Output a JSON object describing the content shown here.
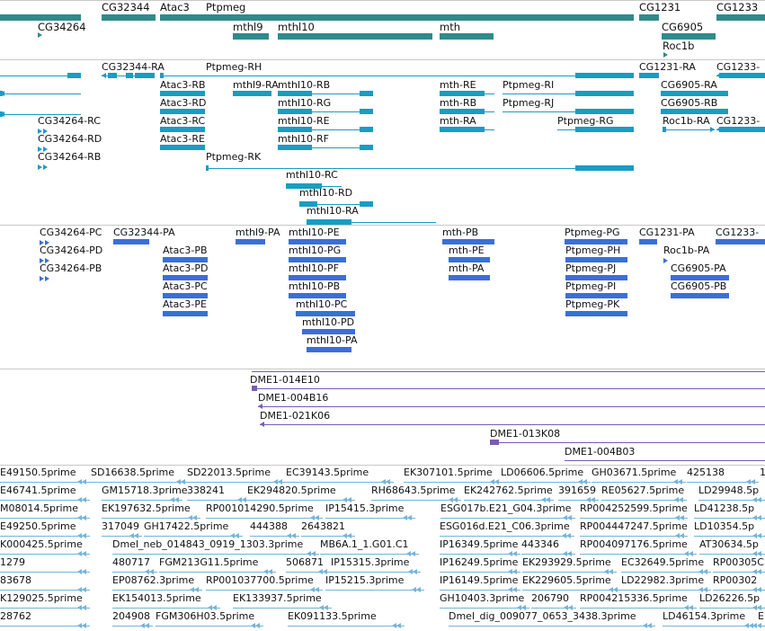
{
  "colors": {
    "gene": "#2e8b8b",
    "transcript": "#1a9cc4",
    "protein": "#3a6fd8",
    "clone": "#7a5bb5",
    "est": "#74b4d8",
    "separator": "#c8c8c8"
  },
  "tracks": {
    "genes": [
      {
        "name": "CG34264",
        "dir": "left"
      },
      {
        "name": "CG32344",
        "dir": "left"
      },
      {
        "name": "Atac3",
        "dir": "left"
      },
      {
        "name": "Ptpmeg",
        "dir": "right"
      },
      {
        "name": "mthl9",
        "dir": "left"
      },
      {
        "name": "mthl10",
        "dir": "left"
      },
      {
        "name": "mth",
        "dir": "left"
      },
      {
        "name": "CG1231",
        "dir": "right"
      },
      {
        "name": "CG6905",
        "dir": "left"
      },
      {
        "name": "Roc1b",
        "dir": "right"
      },
      {
        "name": "CG1233",
        "dir": "right"
      }
    ],
    "transcripts": [
      "CG32344-RA",
      "Ptpmeg-RH",
      "CG1231-RA",
      "CG1233-",
      "Atac3-RB",
      "mthl9-RA",
      "mthl10-RB",
      "mth-RE",
      "Ptpmeg-RI",
      "CG6905-RA",
      "Atac3-RD",
      "mthl10-RG",
      "mth-RB",
      "Ptpmeg-RJ",
      "CG6905-RB",
      "CG34264-RC",
      "Atac3-RC",
      "mthl10-RE",
      "mth-RA",
      "Ptpmeg-RG",
      "Roc1b-RA",
      "CG1233-",
      "CG34264-RD",
      "Atac3-RE",
      "mthl10-RF",
      "CG34264-RB",
      "Ptpmeg-RK",
      "mthl10-RC",
      "mthl10-RD",
      "mthl10-RA"
    ],
    "proteins": [
      "CG34264-PC",
      "CG32344-PA",
      "mthl9-PA",
      "mthl10-PE",
      "mth-PB",
      "Ptpmeg-PG",
      "CG1231-PA",
      "CG1233-",
      "CG34264-PD",
      "Atac3-PB",
      "mthl10-PG",
      "mth-PE",
      "Ptpmeg-PH",
      "Roc1b-PA",
      "CG34264-PB",
      "Atac3-PD",
      "mthl10-PF",
      "mth-PA",
      "Ptpmeg-PJ",
      "CG6905-PA",
      "Atac3-PC",
      "mthl10-PB",
      "Ptpmeg-PI",
      "CG6905-PB",
      "Atac3-PE",
      "mthl10-PC",
      "Ptpmeg-PK",
      "mthl10-PD",
      "mthl10-PA"
    ],
    "clones": [
      "DME1-014E10",
      "DME1-004B16",
      "DME1-021K06",
      "DME1-013K08",
      "DME1-004B03"
    ],
    "ests": [
      "E49150.5prime",
      "SD16638.5prime",
      "SD22013.5prime",
      "EC39143.5prime",
      "EK307101.5prime",
      "LD06606.5prime",
      "GH03671.5prime",
      "425138",
      "1",
      "E46741.5prime",
      "GM15718.3prime",
      "338241",
      "EK294820.5prime",
      "RH68643.5prime",
      "EK242762.5prime",
      "391659",
      "RE05627.5prime",
      "LD29948.5p",
      "M08014.5prime",
      "EK197632.5prime",
      "RP001014290.5prime",
      "IP15415.3prime",
      "ESG017b.E21_G04.3prime",
      "RP004252599.5prime",
      "LD41238.5p",
      "E49250.5prime",
      "317049",
      "GH17422.5prime",
      "444388",
      "2643821",
      "ESG016d.E21_C06.3prime",
      "RP004447247.5prime",
      "LD10354.5p",
      "K000425.5prime",
      "Dmel_neb_014843_0919_1303.3prime",
      "MB6A.1_1.G01.C1",
      "IP16349.5prime",
      "443346",
      "RP004097176.5prime",
      "AT30634.5p",
      "1279",
      "480717",
      "FGM213G11.5prime",
      "506871",
      "IP15315.3prime",
      "IP16249.5prime",
      "EK293929.5prime",
      "EC32649.5prime",
      "RP00305C",
      "83678",
      "EP08762.3prime",
      "RP001037700.5prime",
      "IP15215.3prime",
      "IP16149.5prime",
      "EK229605.5prime",
      "LD22982.3prime",
      "RP00302",
      "K129025.5prime",
      "EK154013.5prime",
      "EK133937.5prime",
      "GH10403.3prime",
      "206790",
      "RP004215336.5prime",
      "LD26226.5p",
      "28762",
      "204908",
      "FGM306H03.5prime",
      "EK091133.5prime",
      "Dmel_dig_009077_0653_3438.3prime",
      "LD46154.3prime",
      "E"
    ]
  }
}
